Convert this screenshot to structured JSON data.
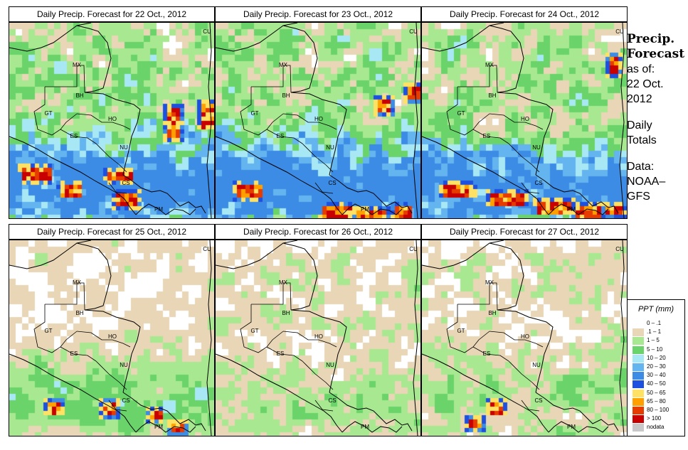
{
  "panels": [
    {
      "title": "Daily Precip. Forecast for  22 Oct., 2012",
      "seed": 11,
      "wet": 1.0,
      "hot": "p22"
    },
    {
      "title": "Daily Precip. Forecast for  23 Oct., 2012",
      "seed": 23,
      "wet": 1.05,
      "hot": "p23"
    },
    {
      "title": "Daily Precip. Forecast for  24 Oct., 2012",
      "seed": 37,
      "wet": 0.95,
      "hot": "p24"
    },
    {
      "title": "Daily Precip. Forecast for  25 Oct., 2012",
      "seed": 41,
      "wet": 0.6,
      "hot": "p25"
    },
    {
      "title": "Daily Precip. Forecast for  26 Oct., 2012",
      "seed": 53,
      "wet": 0.35,
      "hot": "p26"
    },
    {
      "title": "Daily Precip. Forecast for  27 Oct., 2012",
      "seed": 67,
      "wet": 0.4,
      "hot": "p27"
    }
  ],
  "country_labels": [
    "MX",
    "BH",
    "GT",
    "HO",
    "ES",
    "NU",
    "CS",
    "PM",
    "CU"
  ],
  "side": {
    "heading1": "Precip.",
    "heading2": "Forecast",
    "asof": "as of:",
    "date1": "22 Oct.",
    "date2": "2012",
    "daily1": "Daily",
    "daily2": "Totals",
    "data1": "Data:",
    "data2": "NOAA–",
    "data3": "GFS"
  },
  "legend": {
    "title": "PPT (mm)",
    "items": [
      {
        "label": "0 – .1",
        "color": "#ffffff"
      },
      {
        "label": ".1 – 1",
        "color": "#e8d6b6"
      },
      {
        "label": "1 – 5",
        "color": "#a8e890"
      },
      {
        "label": "5 – 10",
        "color": "#6ad46a"
      },
      {
        "label": "10 – 20",
        "color": "#a8e8f4"
      },
      {
        "label": "20 – 30",
        "color": "#64b4f0"
      },
      {
        "label": "30 – 40",
        "color": "#3c8ce6"
      },
      {
        "label": "40 – 50",
        "color": "#1e50e0"
      },
      {
        "label": "50 – 65",
        "color": "#ffe164"
      },
      {
        "label": "65 – 80",
        "color": "#ffa000"
      },
      {
        "label": "80 – 100",
        "color": "#e63c00"
      },
      {
        "label": "> 100",
        "color": "#c80000"
      },
      {
        "label": "nodata",
        "color": "#c8c8c8"
      }
    ]
  }
}
